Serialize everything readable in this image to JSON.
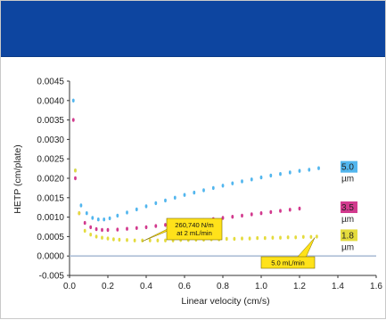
{
  "colors": {
    "header": "#0d45a0",
    "baseline": "#aebfd6",
    "series_5um": "#52b6ee",
    "series_3_5um": "#d23a8e",
    "series_1_8um": "#e4db3d"
  },
  "chart_data": {
    "type": "scatter",
    "title": "",
    "xlabel": "Linear velocity (cm/s)",
    "ylabel": "HETP (cm/plate)",
    "xlim": [
      0.0,
      1.6
    ],
    "ylim": [
      -0.005,
      0.0045
    ],
    "x_ticks": [
      "0.0",
      "0.2",
      "0.4",
      "0.6",
      "0.8",
      "1.0",
      "1.2",
      "1.4",
      "1.6"
    ],
    "y_ticks": [
      "-0.005",
      "0.0000",
      "0.0005",
      "0.0010",
      "0.0015",
      "0.0020",
      "0.0025",
      "0.0030",
      "0.0035",
      "0.0040",
      "0.0045"
    ],
    "grid": false,
    "series": [
      {
        "name": "5.0 µm",
        "color_key": "series_5um",
        "points": [
          [
            0.02,
            0.004
          ],
          [
            0.03,
            0.0022
          ],
          [
            0.06,
            0.0013
          ],
          [
            0.09,
            0.0011
          ],
          [
            0.12,
            0.00098
          ],
          [
            0.15,
            0.00094
          ],
          [
            0.18,
            0.00094
          ],
          [
            0.21,
            0.00097
          ],
          [
            0.25,
            0.00104
          ],
          [
            0.3,
            0.00112
          ],
          [
            0.35,
            0.0012
          ],
          [
            0.4,
            0.00128
          ],
          [
            0.45,
            0.00136
          ],
          [
            0.5,
            0.00143
          ],
          [
            0.55,
            0.0015
          ],
          [
            0.6,
            0.00157
          ],
          [
            0.65,
            0.00163
          ],
          [
            0.7,
            0.00169
          ],
          [
            0.75,
            0.00175
          ],
          [
            0.8,
            0.00181
          ],
          [
            0.85,
            0.00187
          ],
          [
            0.9,
            0.00192
          ],
          [
            0.95,
            0.00197
          ],
          [
            1.0,
            0.00202
          ],
          [
            1.05,
            0.00207
          ],
          [
            1.1,
            0.00211
          ],
          [
            1.15,
            0.00215
          ],
          [
            1.2,
            0.00219
          ],
          [
            1.25,
            0.00222
          ],
          [
            1.3,
            0.00226
          ]
        ]
      },
      {
        "name": "3.5 µm",
        "color_key": "series_3_5um",
        "points": [
          [
            0.02,
            0.0035
          ],
          [
            0.03,
            0.002
          ],
          [
            0.05,
            0.0011
          ],
          [
            0.08,
            0.00085
          ],
          [
            0.11,
            0.00074
          ],
          [
            0.14,
            0.00069
          ],
          [
            0.17,
            0.00067
          ],
          [
            0.2,
            0.00067
          ],
          [
            0.25,
            0.00068
          ],
          [
            0.3,
            0.0007
          ],
          [
            0.35,
            0.00072
          ],
          [
            0.4,
            0.00074
          ],
          [
            0.45,
            0.00077
          ],
          [
            0.5,
            0.0008
          ],
          [
            0.55,
            0.00083
          ],
          [
            0.6,
            0.00086
          ],
          [
            0.65,
            0.00089
          ],
          [
            0.7,
            0.00092
          ],
          [
            0.75,
            0.00095
          ],
          [
            0.8,
            0.00098
          ],
          [
            0.85,
            0.00101
          ],
          [
            0.9,
            0.00104
          ],
          [
            0.95,
            0.00107
          ],
          [
            1.0,
            0.0011
          ],
          [
            1.05,
            0.00113
          ],
          [
            1.1,
            0.00116
          ],
          [
            1.15,
            0.00119
          ],
          [
            1.2,
            0.00122
          ]
        ]
      },
      {
        "name": "1.8 µm",
        "color_key": "series_1_8um",
        "points": [
          [
            0.03,
            0.0022
          ],
          [
            0.05,
            0.0011
          ],
          [
            0.08,
            0.00065
          ],
          [
            0.11,
            0.00055
          ],
          [
            0.14,
            0.0005
          ],
          [
            0.17,
            0.00047
          ],
          [
            0.2,
            0.00045
          ],
          [
            0.23,
            0.00043
          ],
          [
            0.26,
            0.00042
          ],
          [
            0.3,
            0.00041
          ],
          [
            0.34,
            0.0004
          ],
          [
            0.38,
            0.0004
          ],
          [
            0.42,
            0.0004
          ],
          [
            0.46,
            0.0004
          ],
          [
            0.5,
            0.0004
          ],
          [
            0.54,
            0.0004
          ],
          [
            0.58,
            0.00041
          ],
          [
            0.62,
            0.00041
          ],
          [
            0.66,
            0.00042
          ],
          [
            0.7,
            0.00042
          ],
          [
            0.74,
            0.00043
          ],
          [
            0.78,
            0.00043
          ],
          [
            0.82,
            0.00044
          ],
          [
            0.86,
            0.00044
          ],
          [
            0.9,
            0.00045
          ],
          [
            0.94,
            0.00045
          ],
          [
            0.98,
            0.00046
          ],
          [
            1.02,
            0.00046
          ],
          [
            1.06,
            0.00047
          ],
          [
            1.1,
            0.00047
          ],
          [
            1.14,
            0.00048
          ],
          [
            1.18,
            0.00048
          ],
          [
            1.22,
            0.00049
          ],
          [
            1.26,
            0.00049
          ],
          [
            1.29,
            0.0005
          ]
        ]
      }
    ],
    "legend": [
      {
        "color_key": "series_5um",
        "value": "5.0",
        "unit": "µm"
      },
      {
        "color_key": "series_3_5um",
        "value": "3.5",
        "unit": "µm"
      },
      {
        "color_key": "series_1_8um",
        "value": "1.8",
        "unit": "µm"
      }
    ],
    "annotations": [
      {
        "lines": [
          "260,740 N/m",
          "at 2 mL/min"
        ],
        "target": [
          0.38,
          0.0004
        ]
      },
      {
        "lines": [
          "5.0 mL/min"
        ],
        "target": [
          1.28,
          0.0005
        ]
      }
    ]
  }
}
